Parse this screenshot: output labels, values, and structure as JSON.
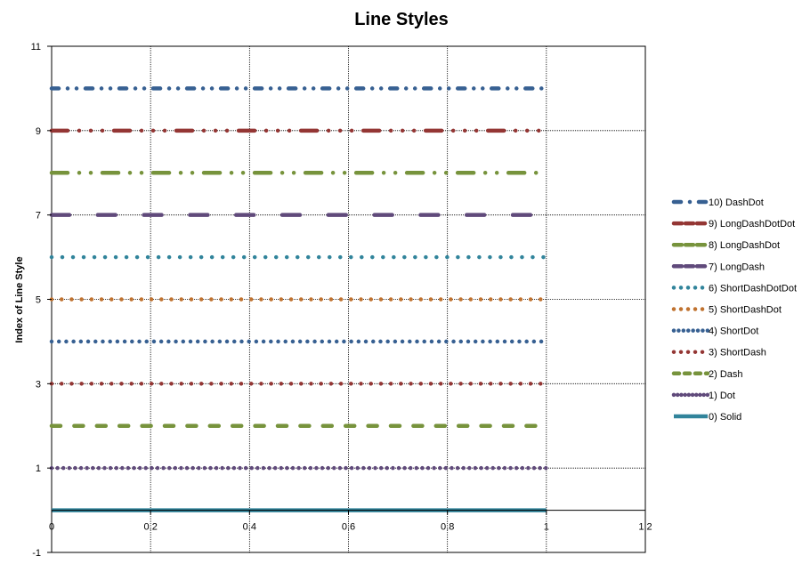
{
  "chart_data": {
    "type": "line",
    "title": "Line Styles",
    "xlabel": "",
    "ylabel": "Index of Line Style",
    "xlim": [
      0,
      1.2
    ],
    "ylim": [
      -1,
      11
    ],
    "x_ticks": [
      0,
      0.2,
      0.4,
      0.6,
      0.8,
      1,
      1.2
    ],
    "x_tick_labels": [
      "0",
      "0.2",
      "0.4",
      "0.6",
      "0.8",
      "1",
      "1.2"
    ],
    "y_ticks": [
      -1,
      1,
      3,
      5,
      7,
      9,
      11
    ],
    "y_tick_labels": [
      "-1",
      "1",
      "3",
      "5",
      "7",
      "9",
      "11"
    ],
    "grid": true,
    "legend_position": "right",
    "series": [
      {
        "name": "0) Solid",
        "x": [
          0,
          1
        ],
        "y": [
          0,
          0
        ],
        "color": "#31849B",
        "style": "solid"
      },
      {
        "name": "1) Dot",
        "x": [
          0,
          1
        ],
        "y": [
          1,
          1
        ],
        "color": "#604A7B",
        "style": "dot"
      },
      {
        "name": "2) Dash",
        "x": [
          0,
          1
        ],
        "y": [
          2,
          2
        ],
        "color": "#77933C",
        "style": "dash"
      },
      {
        "name": "3) ShortDash",
        "x": [
          0,
          1
        ],
        "y": [
          3,
          3
        ],
        "color": "#943634",
        "style": "shortdash"
      },
      {
        "name": "4) ShortDot",
        "x": [
          0,
          1
        ],
        "y": [
          4,
          4
        ],
        "color": "#376092",
        "style": "shortdot"
      },
      {
        "name": "5) ShortDashDot",
        "x": [
          0,
          1
        ],
        "y": [
          5,
          5
        ],
        "color": "#C0722F",
        "style": "shortdashdot"
      },
      {
        "name": "6) ShortDashDotDot",
        "x": [
          0,
          1
        ],
        "y": [
          6,
          6
        ],
        "color": "#31849B",
        "style": "shortdashdotdot"
      },
      {
        "name": "7) LongDash",
        "x": [
          0,
          1
        ],
        "y": [
          7,
          7
        ],
        "color": "#604A7B",
        "style": "longdash"
      },
      {
        "name": "8) LongDashDot",
        "x": [
          0,
          1
        ],
        "y": [
          8,
          8
        ],
        "color": "#77933C",
        "style": "longdashdot"
      },
      {
        "name": "9) LongDashDotDot",
        "x": [
          0,
          1
        ],
        "y": [
          9,
          9
        ],
        "color": "#943634",
        "style": "longdashdotdot"
      },
      {
        "name": "10) DashDot",
        "x": [
          0,
          1
        ],
        "y": [
          10,
          10
        ],
        "color": "#376092",
        "style": "dashdot"
      }
    ]
  }
}
